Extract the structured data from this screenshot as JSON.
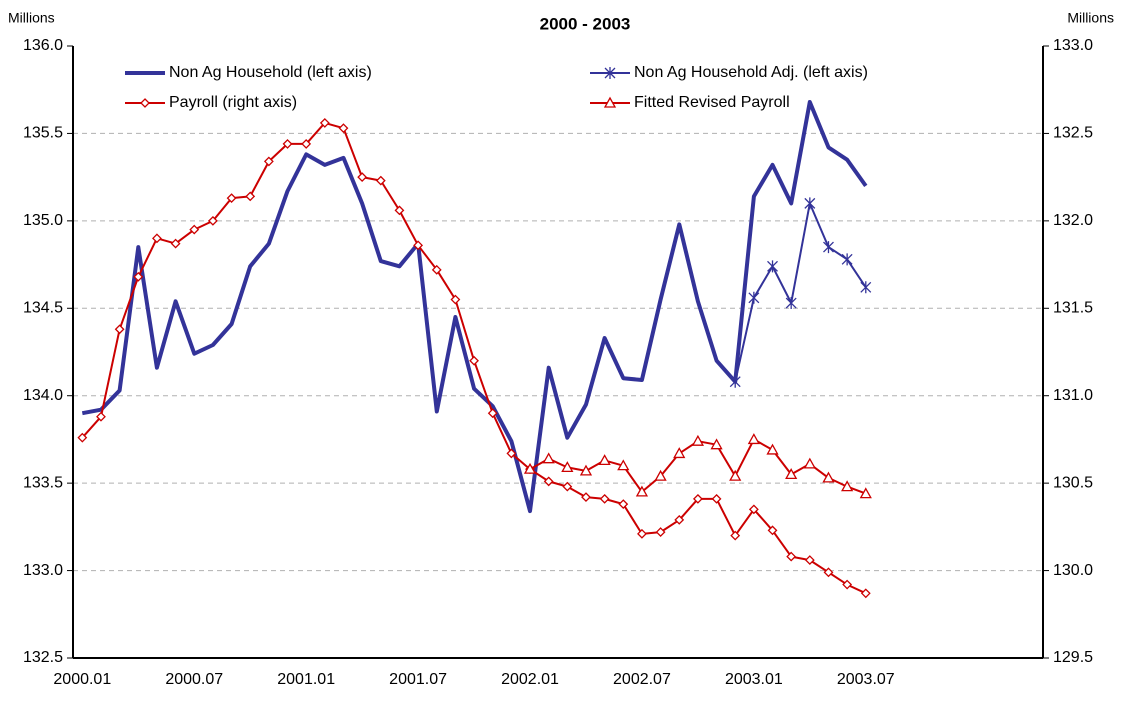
{
  "chart_data": {
    "type": "line",
    "subtitle": "2000 - 2003",
    "ylabel": "Millions",
    "y2label": "Millions",
    "categories": [
      "2000.01",
      null,
      null,
      null,
      null,
      null,
      "2000.07",
      null,
      null,
      null,
      null,
      null,
      "2001.01",
      null,
      null,
      null,
      null,
      null,
      "2001.07",
      null,
      null,
      null,
      null,
      null,
      "2002.01",
      null,
      null,
      null,
      null,
      null,
      "2002.07",
      null,
      null,
      null,
      null,
      null,
      "2003.01",
      null,
      null,
      null,
      null,
      null,
      "2003.07",
      null,
      null,
      null,
      null,
      null,
      null,
      null,
      null,
      null
    ],
    "ylim": [
      132.5,
      136.0
    ],
    "yticks": [
      {
        "value": 132.5,
        "label": "132.5"
      },
      {
        "value": 133,
        "label": "133.0"
      },
      133.5,
      {
        "value": 134,
        "label": "134.0"
      },
      134.5,
      {
        "value": 135,
        "label": "135.0"
      },
      135.5,
      {
        "value": 136,
        "label": "136.0"
      }
    ],
    "y2lim": [
      129.5,
      133.0
    ],
    "y2ticks": [
      129.5,
      {
        "value": 130,
        "label": "130.0"
      },
      130.5,
      {
        "value": 131,
        "label": "131.0"
      },
      131.5,
      {
        "value": 132,
        "label": "132.0"
      },
      132.5,
      {
        "value": 133,
        "label": "133.0"
      }
    ],
    "grid": true,
    "series": [
      {
        "name": "Non Ag Household (left axis)",
        "color": "#333399",
        "marker": "none",
        "values": [
          133.9,
          133.92,
          134.03,
          134.85,
          134.16,
          134.54,
          134.24,
          134.29,
          134.41,
          134.74,
          134.87,
          135.17,
          135.38,
          135.32,
          135.36,
          135.1,
          134.77,
          134.74,
          134.87,
          133.91,
          134.45,
          134.04,
          133.94,
          133.74,
          133.34,
          134.16,
          133.76,
          133.95,
          134.33,
          134.1,
          134.09,
          134.55,
          134.98,
          134.54,
          134.2,
          134.08,
          135.14,
          135.32,
          135.1,
          135.68,
          135.42,
          135.35,
          135.2,
          null,
          null,
          null,
          null,
          null,
          null,
          null,
          null,
          null
        ]
      },
      {
        "name": "Non Ag Household Adj. (left axis)",
        "color": "#333399",
        "marker": "asterisk",
        "values": [
          null,
          null,
          null,
          null,
          null,
          null,
          null,
          null,
          null,
          null,
          null,
          null,
          null,
          null,
          null,
          null,
          null,
          null,
          null,
          null,
          null,
          null,
          null,
          null,
          null,
          null,
          null,
          null,
          null,
          null,
          null,
          null,
          null,
          null,
          null,
          134.08,
          134.56,
          134.74,
          134.53,
          135.1,
          134.85,
          134.78,
          134.62,
          null,
          null,
          null,
          null,
          null,
          null,
          null,
          null,
          null
        ]
      },
      {
        "name": "Payroll (right axis)",
        "color": "#cc0000",
        "marker": "diamond",
        "axis": "y2",
        "values": [
          130.76,
          130.88,
          131.38,
          131.68,
          131.9,
          131.87,
          131.95,
          132.0,
          132.13,
          132.14,
          132.34,
          132.44,
          132.44,
          132.56,
          132.53,
          132.25,
          132.23,
          132.06,
          131.86,
          131.72,
          131.55,
          131.2,
          130.9,
          130.67,
          130.58,
          130.51,
          130.48,
          130.42,
          130.41,
          130.38,
          130.21,
          130.22,
          130.29,
          130.41,
          130.41,
          130.2,
          130.35,
          130.23,
          130.08,
          130.06,
          129.99,
          129.92,
          129.87,
          null,
          null,
          null,
          null,
          null,
          null,
          null,
          null,
          null
        ]
      },
      {
        "name": "Fitted Revised Payroll",
        "color": "#cc0000",
        "marker": "triangle",
        "axis": "y2",
        "values": [
          null,
          null,
          null,
          null,
          null,
          null,
          null,
          null,
          null,
          null,
          null,
          null,
          null,
          null,
          null,
          null,
          null,
          null,
          null,
          null,
          null,
          null,
          null,
          null,
          130.58,
          130.64,
          130.59,
          130.57,
          130.63,
          130.6,
          130.45,
          130.54,
          130.67,
          130.74,
          130.72,
          130.54,
          130.75,
          130.69,
          130.55,
          130.61,
          130.53,
          130.48,
          130.44,
          null,
          null,
          null,
          null,
          null,
          null,
          null,
          null,
          null
        ]
      }
    ]
  }
}
